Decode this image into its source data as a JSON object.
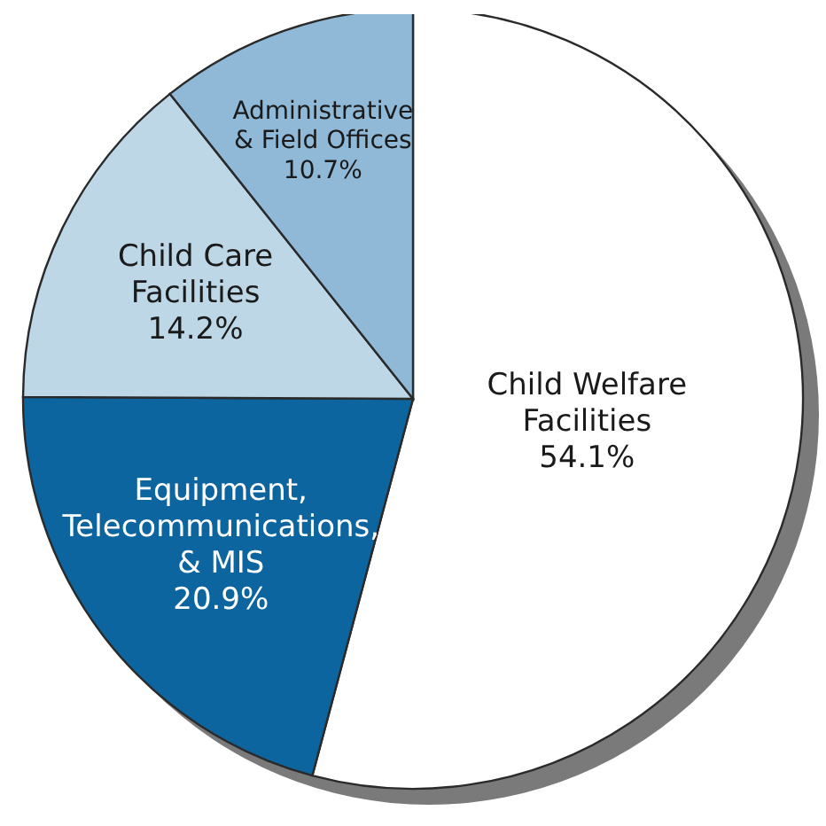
{
  "chart_data": {
    "type": "pie",
    "categories": [
      "Child Welfare\nFacilities",
      "Equipment,\nTelecommunications,\n& MIS",
      "Child Care\nFacilities",
      "Administrative\n& Field Offices"
    ],
    "values": [
      54.1,
      20.9,
      14.2,
      10.7
    ],
    "value_labels": [
      "54.1%",
      "20.9%",
      "14.2%",
      "10.7%"
    ],
    "colors": [
      "#ffffff",
      "#0d65a0",
      "#bdd7e7",
      "#8fb9d7"
    ]
  }
}
